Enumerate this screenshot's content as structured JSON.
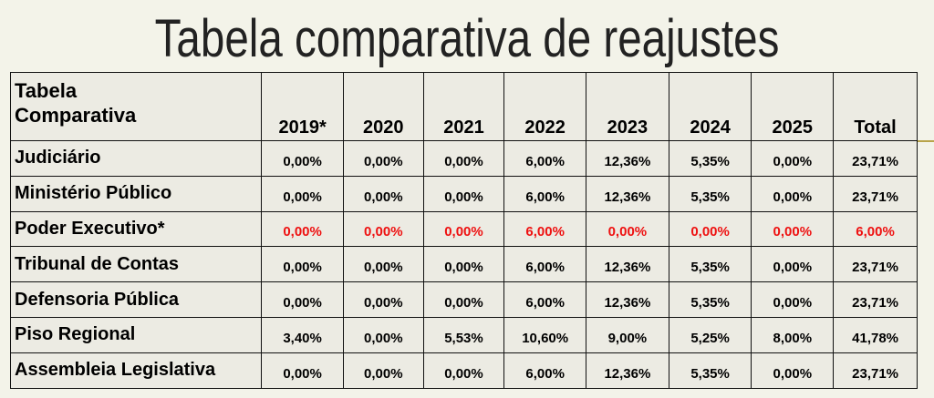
{
  "title": "Tabela comparativa de reajustes",
  "table": {
    "corner_label_line1": "Tabela",
    "corner_label_line2": "Comparativa",
    "headers": [
      "2019*",
      "2020",
      "2021",
      "2022",
      "2023",
      "2024",
      "2025",
      "Total"
    ],
    "rows": [
      {
        "label": "Judiciário",
        "values": [
          "0,00%",
          "0,00%",
          "0,00%",
          "6,00%",
          "12,36%",
          "5,35%",
          "0,00%",
          "23,71%"
        ]
      },
      {
        "label": "Ministério Público",
        "values": [
          "0,00%",
          "0,00%",
          "0,00%",
          "6,00%",
          "12,36%",
          "5,35%",
          "0,00%",
          "23,71%"
        ]
      },
      {
        "label": "Poder Executivo*",
        "values": [
          "0,00%",
          "0,00%",
          "0,00%",
          "6,00%",
          "0,00%",
          "0,00%",
          "0,00%",
          "6,00%"
        ]
      },
      {
        "label": "Tribunal de Contas",
        "values": [
          "0,00%",
          "0,00%",
          "0,00%",
          "6,00%",
          "12,36%",
          "5,35%",
          "0,00%",
          "23,71%"
        ]
      },
      {
        "label": "Defensoria Pública",
        "values": [
          "0,00%",
          "0,00%",
          "0,00%",
          "6,00%",
          "12,36%",
          "5,35%",
          "0,00%",
          "23,71%"
        ]
      },
      {
        "label": "Piso Regional",
        "values": [
          "3,40%",
          "0,00%",
          "5,53%",
          "10,60%",
          "9,00%",
          "5,25%",
          "8,00%",
          "41,78%"
        ]
      },
      {
        "label": "Assembleia Legislativa",
        "values": [
          "0,00%",
          "0,00%",
          "0,00%",
          "6,00%",
          "12,36%",
          "5,35%",
          "0,00%",
          "23,71%"
        ]
      }
    ]
  },
  "colors": {
    "background": "#f3f3e9",
    "highlight_text": "#ee1111",
    "accent_line": "#b8a44a"
  }
}
